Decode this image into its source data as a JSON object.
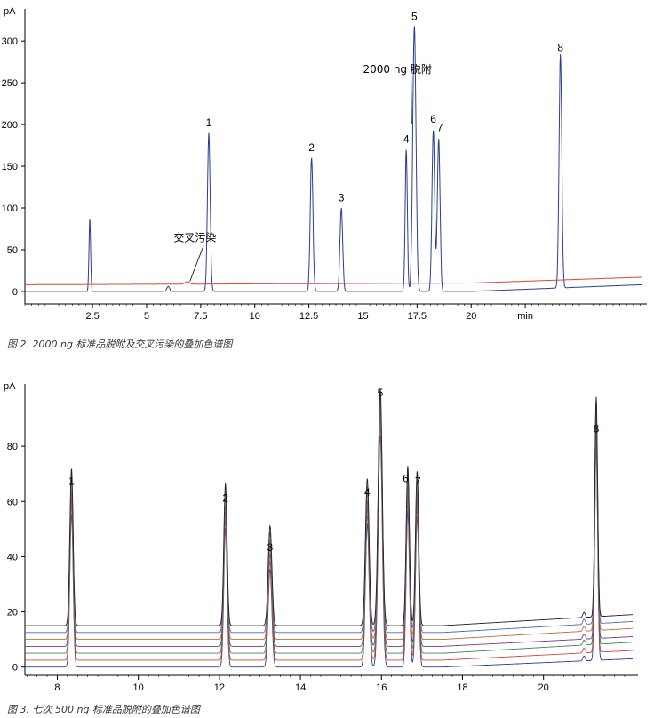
{
  "chart_data": [
    {
      "type": "line",
      "caption": "图 2.  2000 ng 标准品脱附及交叉污染的叠加色谱图",
      "ylabel": "pA",
      "xlabel": "min",
      "xlim": [
        1.5,
        24.3
      ],
      "ylim": [
        -15,
        330
      ],
      "y_ticks": [
        0,
        50,
        100,
        150,
        200,
        250,
        300
      ],
      "x_ticks": [
        {
          "value": 4.0,
          "label": "2.5"
        },
        {
          "value": 6.0,
          "label": "5"
        },
        {
          "value": 8.0,
          "label": "7.5"
        },
        {
          "value": 10.0,
          "label": "10"
        },
        {
          "value": 12.0,
          "label": "12.5"
        },
        {
          "value": 14.0,
          "label": "15"
        },
        {
          "value": 16.0,
          "label": "17.5"
        },
        {
          "value": 18.0,
          "label": "20"
        },
        {
          "value": 20.0,
          "label": "min"
        }
      ],
      "series": [
        {
          "color": "#2b3f8f",
          "baseline": [
            [
              1.5,
              0
            ],
            [
              18.0,
              0
            ],
            [
              24.3,
              8
            ]
          ],
          "peaks": [
            {
              "x": 3.9,
              "height": 87,
              "width": 0.03
            },
            {
              "x": 6.8,
              "height": 6,
              "width": 0.05
            },
            {
              "x": 8.3,
              "height": 190,
              "width": 0.05
            },
            {
              "x": 12.1,
              "height": 160,
              "width": 0.05
            },
            {
              "x": 13.2,
              "height": 100,
              "width": 0.05
            },
            {
              "x": 15.6,
              "height": 170,
              "width": 0.04
            },
            {
              "x": 15.9,
              "height": 318,
              "width": 0.06
            },
            {
              "x": 16.6,
              "height": 193,
              "width": 0.05
            },
            {
              "x": 16.8,
              "height": 183,
              "width": 0.05
            },
            {
              "x": 21.3,
              "height": 280,
              "width": 0.05
            }
          ]
        },
        {
          "color": "#d9473a",
          "baseline": [
            [
              1.5,
              8
            ],
            [
              18.0,
              10
            ],
            [
              24.3,
              17
            ]
          ],
          "peaks": [
            {
              "x": 7.5,
              "height": 3,
              "width": 0.08
            }
          ]
        }
      ],
      "peak_labels": [
        {
          "x": 8.3,
          "y": 198,
          "text": "1"
        },
        {
          "x": 12.1,
          "y": 168,
          "text": "2"
        },
        {
          "x": 13.2,
          "y": 108,
          "text": "3"
        },
        {
          "x": 15.6,
          "y": 178,
          "text": "4"
        },
        {
          "x": 15.9,
          "y": 325,
          "text": "5"
        },
        {
          "x": 16.6,
          "y": 202,
          "text": "6"
        },
        {
          "x": 16.85,
          "y": 192,
          "text": "7"
        },
        {
          "x": 21.3,
          "y": 288,
          "text": "8"
        }
      ],
      "annotations": [
        {
          "text": "2000 ng 脱附",
          "x": 14.0,
          "y": 262,
          "arrow_to": [
            15.8,
            200
          ]
        },
        {
          "text": "交叉污染",
          "x": 7.0,
          "y": 60,
          "arrow_to": [
            7.6,
            12
          ]
        }
      ]
    },
    {
      "type": "line",
      "caption": "图 3.  七次 500 ng 标准品脱附的叠加色谱图",
      "ylabel": "pA",
      "xlim": [
        7.2,
        22.2
      ],
      "ylim": [
        -3,
        100
      ],
      "y_ticks": [
        0,
        20,
        40,
        60,
        80
      ],
      "x_ticks": [
        {
          "value": 8,
          "label": "8"
        },
        {
          "value": 10,
          "label": "10"
        },
        {
          "value": 12,
          "label": "12"
        },
        {
          "value": 14,
          "label": "14"
        },
        {
          "value": 16,
          "label": "16"
        },
        {
          "value": 18,
          "label": "18"
        },
        {
          "value": 20,
          "label": "20"
        }
      ],
      "peaks": [
        {
          "x": 8.35,
          "height": 63,
          "width": 0.04
        },
        {
          "x": 12.15,
          "height": 57,
          "width": 0.04
        },
        {
          "x": 13.25,
          "height": 40,
          "width": 0.045
        },
        {
          "x": 15.65,
          "height": 59,
          "width": 0.045
        },
        {
          "x": 15.97,
          "height": 95,
          "width": 0.05
        },
        {
          "x": 16.65,
          "height": 64,
          "width": 0.04
        },
        {
          "x": 16.88,
          "height": 62,
          "width": 0.04
        },
        {
          "x": 21.3,
          "height": 88,
          "width": 0.035
        },
        {
          "x": 21.0,
          "height": 2,
          "width": 0.03
        }
      ],
      "series": [
        {
          "color": "#2b3f8f",
          "offset": 0,
          "drift_end": 3,
          "scale": 0.93
        },
        {
          "color": "#d9473a",
          "offset": 2.5,
          "drift_end": 6,
          "scale": 0.95
        },
        {
          "color": "#3a8a55",
          "offset": 5,
          "drift_end": 9,
          "scale": 0.96
        },
        {
          "color": "#7a3b8a",
          "offset": 7.5,
          "drift_end": 11,
          "scale": 0.97
        },
        {
          "color": "#c07030",
          "offset": 10,
          "drift_end": 14,
          "scale": 0.98
        },
        {
          "color": "#4a6ab0",
          "offset": 12.5,
          "drift_end": 16.5,
          "scale": 0.99
        },
        {
          "color": "#222222",
          "offset": 15,
          "drift_end": 19,
          "scale": 1.0
        }
      ],
      "peak_labels": [
        {
          "x": 8.35,
          "y": 66,
          "text": "1"
        },
        {
          "x": 12.15,
          "y": 60,
          "text": "2"
        },
        {
          "x": 13.25,
          "y": 42,
          "text": "3"
        },
        {
          "x": 15.65,
          "y": 62,
          "text": "4"
        },
        {
          "x": 15.97,
          "y": 98,
          "text": "5"
        },
        {
          "x": 16.6,
          "y": 67,
          "text": "6"
        },
        {
          "x": 16.9,
          "y": 66,
          "text": "7"
        },
        {
          "x": 21.3,
          "y": 85,
          "text": "8"
        }
      ]
    }
  ]
}
